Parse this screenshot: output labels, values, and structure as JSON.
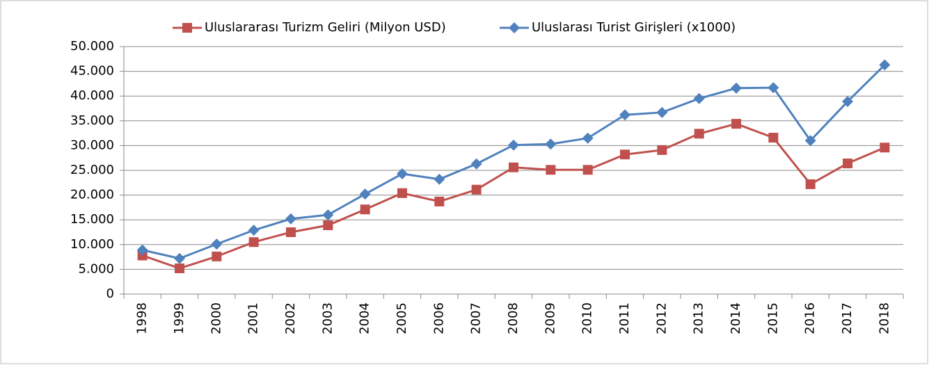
{
  "chart_data": {
    "type": "line",
    "categories": [
      "1998",
      "1999",
      "2000",
      "2001",
      "2002",
      "2003",
      "2004",
      "2005",
      "2006",
      "2007",
      "2008",
      "2009",
      "2010",
      "2011",
      "2012",
      "2013",
      "2014",
      "2015",
      "2016",
      "2017",
      "2018"
    ],
    "series": [
      {
        "name": "Uluslararası Turizm Geliri (Milyon USD)",
        "color": "#c0504d",
        "marker": "square",
        "values": [
          7800,
          5200,
          7600,
          10500,
          12500,
          13900,
          17100,
          20400,
          18700,
          21100,
          25600,
          25100,
          25100,
          28200,
          29100,
          32400,
          34400,
          31600,
          22200,
          26400,
          29600
        ]
      },
      {
        "name": "Uluslarası Turist Girişleri (x1000)",
        "color": "#4f81bd",
        "marker": "diamond",
        "values": [
          8900,
          7200,
          10100,
          12900,
          15200,
          16000,
          20200,
          24300,
          23200,
          26300,
          30100,
          30300,
          31500,
          36200,
          36700,
          39500,
          41600,
          41700,
          31000,
          38900,
          46300
        ]
      }
    ],
    "ylim": [
      0,
      50000
    ],
    "yticks": [
      0,
      {
        "value": 5000,
        "label": "5.000"
      },
      {
        "value": 10000,
        "label": "10.000"
      },
      {
        "value": 15000,
        "label": "15.000"
      },
      {
        "value": 20000,
        "label": "20.000"
      },
      {
        "value": 25000,
        "label": "25.000"
      },
      {
        "value": 30000,
        "label": "30.000"
      },
      {
        "value": 35000,
        "label": "35.000"
      },
      {
        "value": 40000,
        "label": "40.000"
      },
      {
        "value": 45000,
        "label": "45.000"
      },
      {
        "value": 50000,
        "label": "50.000"
      }
    ],
    "grid": true,
    "legend": "top"
  }
}
